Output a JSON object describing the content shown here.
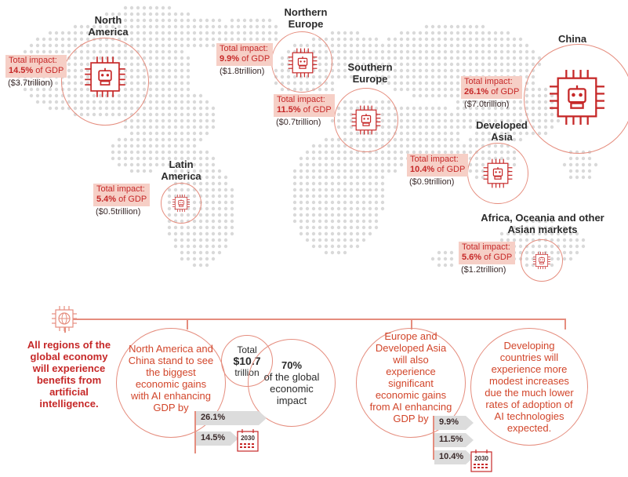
{
  "regions": [
    {
      "id": "north-america",
      "name": "North America",
      "impact_label": "Total impact:",
      "percent": "14.5%",
      "gdp_suffix": " of GDP",
      "amount": "($3.7trillion)"
    },
    {
      "id": "northern-europe",
      "name": "Northern Europe",
      "impact_label": "Total impact:",
      "percent": "9.9%",
      "gdp_suffix": " of GDP",
      "amount": "($1.8trillion)"
    },
    {
      "id": "southern-europe",
      "name": "Southern Europe",
      "impact_label": "Total impact:",
      "percent": "11.5%",
      "gdp_suffix": " of GDP",
      "amount": "($0.7trillion)"
    },
    {
      "id": "china",
      "name": "China",
      "impact_label": "Total impact:",
      "percent": "26.1%",
      "gdp_suffix": " of GDP",
      "amount": "($7.0trillion)"
    },
    {
      "id": "developed-asia",
      "name": "Developed Asia",
      "impact_label": "Total impact:",
      "percent": "10.4%",
      "gdp_suffix": " of GDP",
      "amount": "($0.9trillion)"
    },
    {
      "id": "latin-america",
      "name": "Latin America",
      "impact_label": "Total impact:",
      "percent": "5.4%",
      "gdp_suffix": " of GDP",
      "amount": "($0.5trillion)"
    },
    {
      "id": "africa-oceania",
      "name": "Africa, Oceania and other Asian markets",
      "impact_label": "Total impact:",
      "percent": "5.6%",
      "gdp_suffix": " of GDP",
      "amount": "($1.2trillion)"
    }
  ],
  "summary": {
    "all_regions": "All regions of the global economy will experience benefits from artificial intelligence.",
    "na_china": "North America and China stand to see the biggest economic gains with AI enhancing GDP by",
    "total_prefix": "Total",
    "total_value": "$10.7",
    "total_suffix": "trillion",
    "share_value": "70%",
    "share_text": "of the global economic impact",
    "europe_asia": "Europe and Developed Asia will also experience significant economic gains from AI enhancing GDP by",
    "developing": "Developing countries will experience more modest increases due the much lower rates of adoption of AI technologies expected."
  },
  "bars_left": [
    {
      "label": "26.1%",
      "value": 26.1
    },
    {
      "label": "14.5%",
      "value": 14.5
    }
  ],
  "bars_right": [
    {
      "label": "9.9%",
      "value": 9.9
    },
    {
      "label": "11.5%",
      "value": 11.5
    },
    {
      "label": "10.4%",
      "value": 10.4
    }
  ],
  "year_label": "2030",
  "colors": {
    "accent": "#e58d7e",
    "highlight": "#f6cfc6",
    "text_red": "#c62828",
    "map_dot": "#d9d9d9"
  }
}
